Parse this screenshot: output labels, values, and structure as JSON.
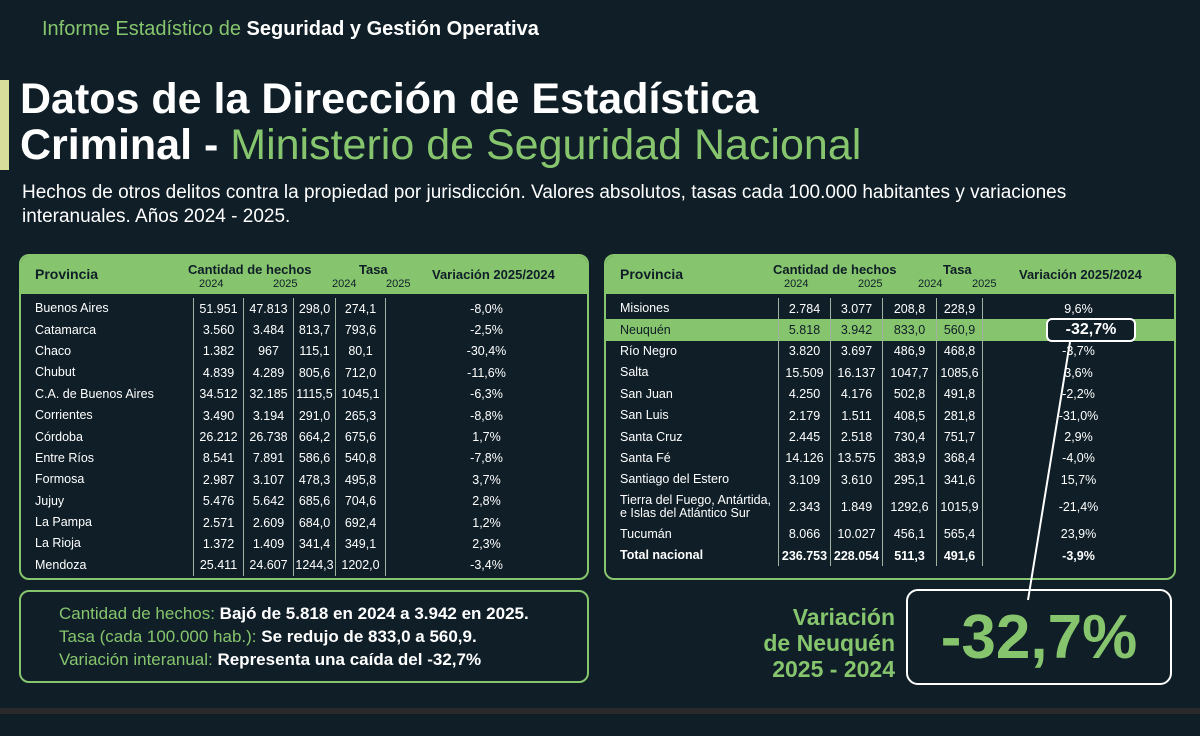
{
  "header": {
    "prefix": "Informe Estadístico de ",
    "bold": "Seguridad y Gestión Operativa"
  },
  "title": {
    "line1": "Datos de la Dirección de Estadística",
    "line2_white": "Criminal - ",
    "line2_green": "Ministerio de Seguridad Nacional"
  },
  "subtitle": "Hechos de otros delitos contra la propiedad por jurisdicción. Valores absolutos, tasas cada 100.000 habitantes y variaciones interanuales. Años 2024 - 2025.",
  "table_headers": {
    "provincia": "Provincia",
    "cantidad": "Cantidad de hechos",
    "tasa": "Tasa",
    "variacion": "Variación 2025/2024",
    "y2024": "2024",
    "y2025": "2025"
  },
  "chart_data": {
    "type": "table",
    "columns": [
      "Provincia",
      "Cantidad de hechos 2024",
      "Cantidad de hechos 2025",
      "Tasa 2024",
      "Tasa 2025",
      "Variación 2025/2024"
    ],
    "left_rows": [
      [
        "Buenos Aires",
        "51.951",
        "47.813",
        "298,0",
        "274,1",
        "-8,0%"
      ],
      [
        "Catamarca",
        "3.560",
        "3.484",
        "813,7",
        "793,6",
        "-2,5%"
      ],
      [
        "Chaco",
        "1.382",
        "967",
        "115,1",
        "80,1",
        "-30,4%"
      ],
      [
        "Chubut",
        "4.839",
        "4.289",
        "805,6",
        "712,0",
        "-11,6%"
      ],
      [
        "C.A. de Buenos Aires",
        "34.512",
        "32.185",
        "1115,5",
        "1045,1",
        "-6,3%"
      ],
      [
        "Corrientes",
        "3.490",
        "3.194",
        "291,0",
        "265,3",
        "-8,8%"
      ],
      [
        "Córdoba",
        "26.212",
        "26.738",
        "664,2",
        "675,6",
        "1,7%"
      ],
      [
        "Entre Ríos",
        "8.541",
        "7.891",
        "586,6",
        "540,8",
        "-7,8%"
      ],
      [
        "Formosa",
        "2.987",
        "3.107",
        "478,3",
        "495,8",
        "3,7%"
      ],
      [
        "Jujuy",
        "5.476",
        "5.642",
        "685,6",
        "704,6",
        "2,8%"
      ],
      [
        "La Pampa",
        "2.571",
        "2.609",
        "684,0",
        "692,4",
        "1,2%"
      ],
      [
        "La Rioja",
        "1.372",
        "1.409",
        "341,4",
        "349,1",
        "2,3%"
      ],
      [
        "Mendoza",
        "25.411",
        "24.607",
        "1244,3",
        "1202,0",
        "-3,4%"
      ]
    ],
    "right_rows": [
      [
        "Misiones",
        "2.784",
        "3.077",
        "208,8",
        "228,9",
        "9,6%"
      ],
      [
        "Neuquén",
        "5.818",
        "3.942",
        "833,0",
        "560,9",
        "-32,7%"
      ],
      [
        "Río Negro",
        "3.820",
        "3.697",
        "486,9",
        "468,8",
        "-3,7%"
      ],
      [
        "Salta",
        "15.509",
        "16.137",
        "1047,7",
        "1085,6",
        "3,6%"
      ],
      [
        "San Juan",
        "4.250",
        "4.176",
        "502,8",
        "491,8",
        "-2,2%"
      ],
      [
        "San Luis",
        "2.179",
        "1.511",
        "408,5",
        "281,8",
        "-31,0%"
      ],
      [
        "Santa Cruz",
        "2.445",
        "2.518",
        "730,4",
        "751,7",
        "2,9%"
      ],
      [
        "Santa Fé",
        "14.126",
        "13.575",
        "383,9",
        "368,4",
        "-4,0%"
      ],
      [
        "Santiago del Estero",
        "3.109",
        "3.610",
        "295,1",
        "341,6",
        "15,7%"
      ],
      [
        "Tierra del Fuego, Antártida, e Islas del Atlántico Sur",
        "2.343",
        "1.849",
        "1292,6",
        "1015,9",
        "-21,4%"
      ],
      [
        "Tucumán",
        "8.066",
        "10.027",
        "456,1",
        "565,4",
        "23,9%"
      ],
      [
        "Total nacional",
        "236.753",
        "228.054",
        "511,3",
        "491,6",
        "-3,9%"
      ]
    ],
    "highlight_row": "Neuquén",
    "highlight_value": "-32,7%"
  },
  "summary": {
    "l1_label": "Cantidad de hechos: ",
    "l1_value": "Bajó de 5.818 en 2024 a 3.942 en 2025.",
    "l2_label": "Tasa (cada 100.000 hab.): ",
    "l2_value": "Se redujo de 833,0 a 560,9.",
    "l3_label": "Variación interanual: ",
    "l3_value": "Representa una caída del -32,7%"
  },
  "big_label": {
    "l1": "Variación",
    "l2": "de Neuquén",
    "l3": "2025 - 2024"
  },
  "big_value": "-32,7%",
  "colors": {
    "background": "#0f1e27",
    "accent_green": "#86c56d",
    "text": "#ffffff"
  }
}
